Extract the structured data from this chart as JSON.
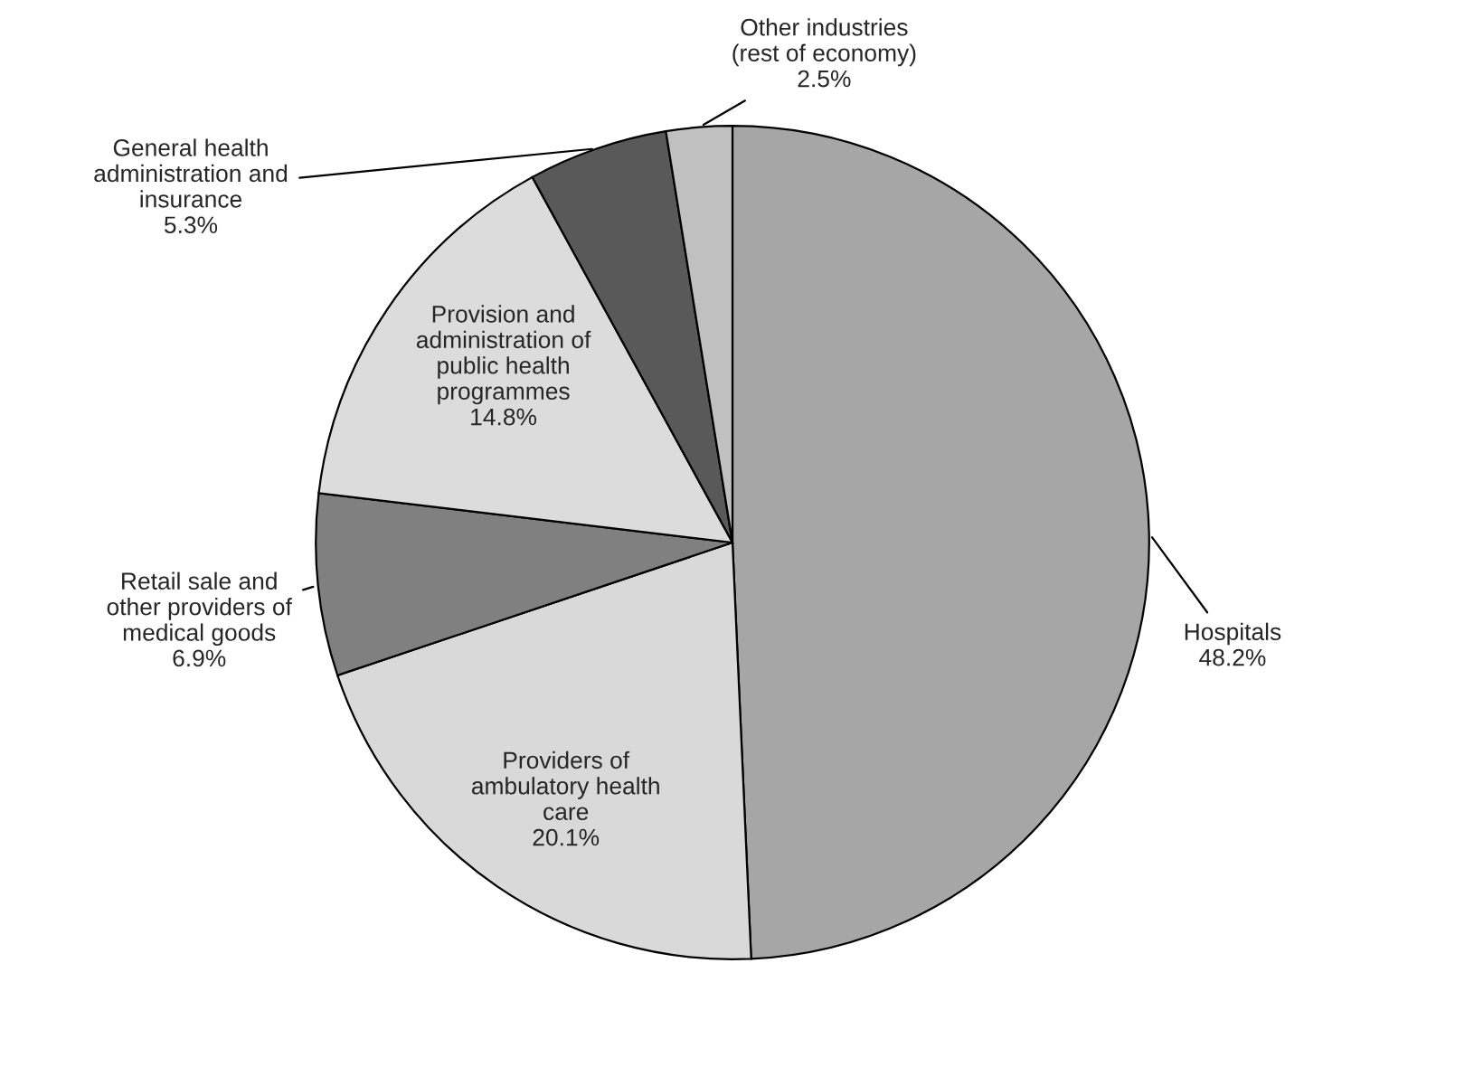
{
  "chart_data": {
    "type": "pie",
    "categories": [
      "Hospitals",
      "Providers of\nambulatory health\ncare",
      "Retail sale and\nother providers of\nmedical goods",
      "Provision and\nadministration of\npublic health\nprogrammes",
      "General health\nadministration and\ninsurance",
      "Other industries\n(rest of economy)"
    ],
    "values": [
      48.2,
      20.1,
      6.9,
      14.8,
      5.3,
      2.5
    ],
    "colors": [
      "#a6a6a6",
      "#d9d9d9",
      "#808080",
      "#dcdcdc",
      "#595959",
      "#c0c0c0"
    ],
    "value_labels": [
      "48.2%",
      "20.1%",
      "6.9%",
      "14.8%",
      "5.3%",
      "2.5%"
    ]
  }
}
